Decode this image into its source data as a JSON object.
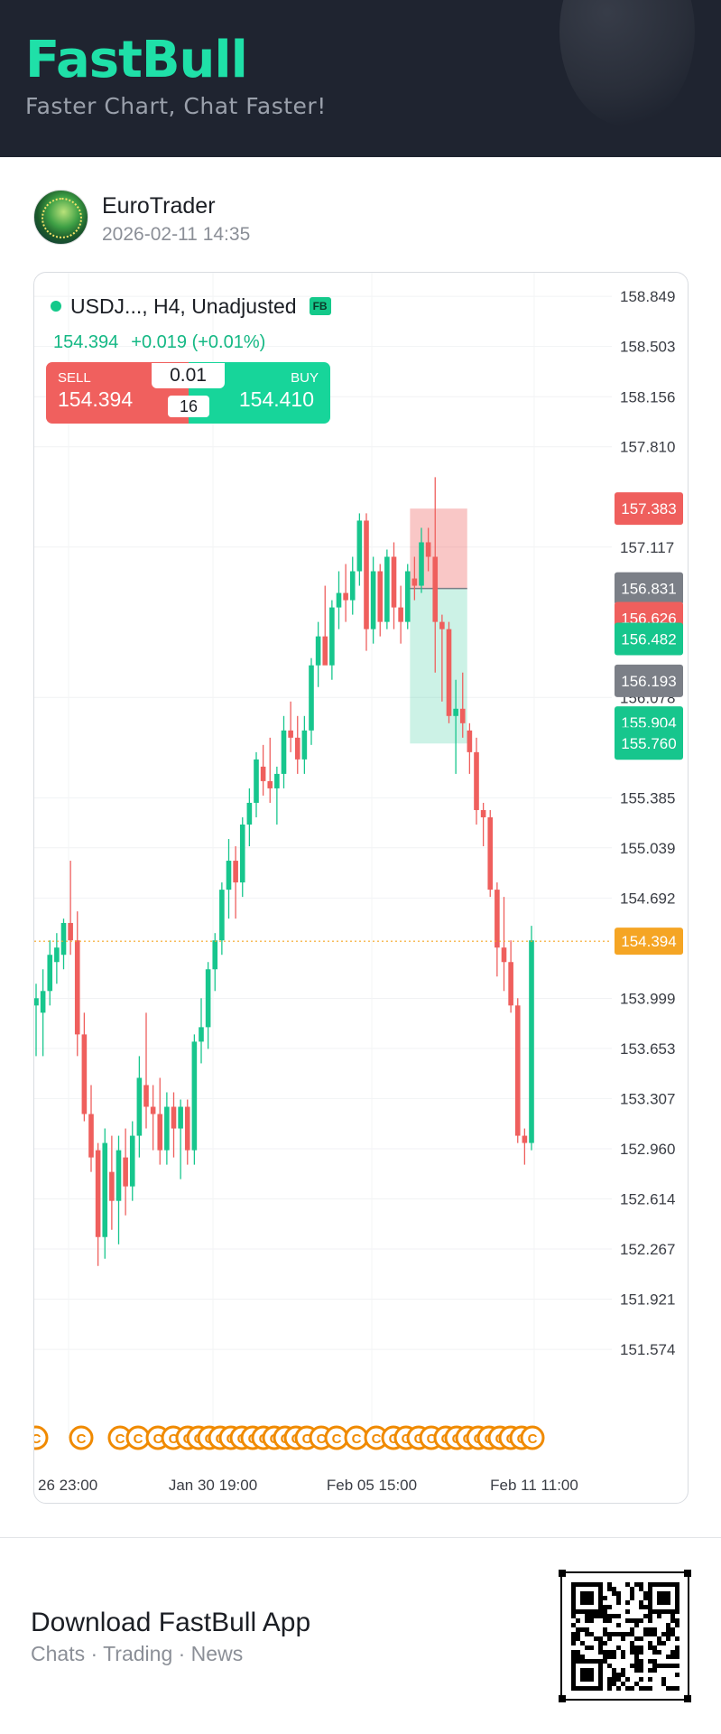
{
  "header": {
    "logo": "FastBull",
    "tagline": "Faster Chart, Chat Faster!"
  },
  "author": {
    "name": "EuroTrader",
    "timestamp": "2026-02-11 14:35"
  },
  "chart": {
    "symbol": "USDJ...",
    "meta": ", H4, Unadjusted",
    "badge": "FB",
    "quote_price": "154.394",
    "quote_change": "+0.019 (+0.01%)",
    "sell_label": "SELL",
    "sell_price": "154.394",
    "buy_label": "BUY",
    "buy_price": "154.410",
    "lot_size": "0.01",
    "spread": "16",
    "colors": {
      "up": "#17c68d",
      "down": "#ef5f5d",
      "current": "#f5a524",
      "gray_tag": "#7b7f87"
    }
  },
  "chart_data": {
    "type": "candlestick",
    "y_ticks": [
      "158.849",
      "158.503",
      "158.156",
      "157.810",
      "157.117",
      "156.078",
      "155.385",
      "155.039",
      "154.692",
      "153.999",
      "153.653",
      "153.307",
      "152.960",
      "152.614",
      "152.267",
      "151.921",
      "151.574"
    ],
    "x_ticks": [
      "26 23:00",
      "Jan 30 19:00",
      "Feb 05 15:00",
      "Feb 11 11:00"
    ],
    "ylim": [
      151.4,
      158.95
    ],
    "current_price": "154.394",
    "price_tags": [
      {
        "label": "157.383",
        "color": "down"
      },
      {
        "label": "156.831",
        "color": "gray"
      },
      {
        "label": "156.626",
        "color": "down"
      },
      {
        "label": "156.482",
        "color": "up"
      },
      {
        "label": "156.193",
        "color": "gray"
      },
      {
        "label": "155.904",
        "color": "up"
      },
      {
        "label": "155.760",
        "color": "up"
      }
    ],
    "position_box": {
      "entry": 156.831,
      "stop": 157.383,
      "target": 155.76
    },
    "event_marker": "C",
    "candles": [
      {
        "o": 153.95,
        "h": 154.1,
        "l": 153.6,
        "c": 154.0
      },
      {
        "o": 153.9,
        "h": 154.2,
        "l": 153.6,
        "c": 154.05
      },
      {
        "o": 154.05,
        "h": 154.4,
        "l": 153.95,
        "c": 154.3
      },
      {
        "o": 154.25,
        "h": 154.45,
        "l": 154.1,
        "c": 154.35
      },
      {
        "o": 154.3,
        "h": 154.55,
        "l": 154.2,
        "c": 154.52
      },
      {
        "o": 154.52,
        "h": 154.95,
        "l": 154.3,
        "c": 154.4
      },
      {
        "o": 154.4,
        "h": 154.6,
        "l": 153.6,
        "c": 153.75
      },
      {
        "o": 153.75,
        "h": 153.9,
        "l": 153.15,
        "c": 153.2
      },
      {
        "o": 153.2,
        "h": 153.4,
        "l": 152.8,
        "c": 152.9
      },
      {
        "o": 152.95,
        "h": 153.0,
        "l": 152.15,
        "c": 152.35
      },
      {
        "o": 152.35,
        "h": 153.1,
        "l": 152.2,
        "c": 153.0
      },
      {
        "o": 152.8,
        "h": 153.05,
        "l": 152.4,
        "c": 152.6
      },
      {
        "o": 152.6,
        "h": 153.05,
        "l": 152.3,
        "c": 152.95
      },
      {
        "o": 152.9,
        "h": 153.1,
        "l": 152.5,
        "c": 152.7
      },
      {
        "o": 152.7,
        "h": 153.15,
        "l": 152.6,
        "c": 153.05
      },
      {
        "o": 153.05,
        "h": 153.6,
        "l": 152.9,
        "c": 153.45
      },
      {
        "o": 153.4,
        "h": 153.9,
        "l": 153.1,
        "c": 153.25
      },
      {
        "o": 153.25,
        "h": 153.4,
        "l": 152.95,
        "c": 153.2
      },
      {
        "o": 153.2,
        "h": 153.45,
        "l": 152.85,
        "c": 152.95
      },
      {
        "o": 152.95,
        "h": 153.35,
        "l": 152.85,
        "c": 153.25
      },
      {
        "o": 153.25,
        "h": 153.35,
        "l": 152.9,
        "c": 153.1
      },
      {
        "o": 153.1,
        "h": 153.3,
        "l": 152.75,
        "c": 153.25
      },
      {
        "o": 153.25,
        "h": 153.3,
        "l": 152.85,
        "c": 152.95
      },
      {
        "o": 152.95,
        "h": 153.75,
        "l": 152.85,
        "c": 153.7
      },
      {
        "o": 153.7,
        "h": 154.0,
        "l": 153.55,
        "c": 153.8
      },
      {
        "o": 153.8,
        "h": 154.25,
        "l": 153.65,
        "c": 154.2
      },
      {
        "o": 154.2,
        "h": 154.45,
        "l": 154.05,
        "c": 154.4
      },
      {
        "o": 154.4,
        "h": 154.8,
        "l": 154.3,
        "c": 154.75
      },
      {
        "o": 154.75,
        "h": 155.1,
        "l": 154.55,
        "c": 154.95
      },
      {
        "o": 154.95,
        "h": 155.05,
        "l": 154.55,
        "c": 154.8
      },
      {
        "o": 154.8,
        "h": 155.25,
        "l": 154.7,
        "c": 155.2
      },
      {
        "o": 155.2,
        "h": 155.45,
        "l": 155.05,
        "c": 155.35
      },
      {
        "o": 155.35,
        "h": 155.7,
        "l": 155.25,
        "c": 155.65
      },
      {
        "o": 155.6,
        "h": 155.75,
        "l": 155.4,
        "c": 155.5
      },
      {
        "o": 155.5,
        "h": 155.8,
        "l": 155.35,
        "c": 155.45
      },
      {
        "o": 155.45,
        "h": 155.6,
        "l": 155.2,
        "c": 155.55
      },
      {
        "o": 155.55,
        "h": 155.95,
        "l": 155.45,
        "c": 155.85
      },
      {
        "o": 155.85,
        "h": 156.05,
        "l": 155.7,
        "c": 155.8
      },
      {
        "o": 155.8,
        "h": 155.95,
        "l": 155.55,
        "c": 155.65
      },
      {
        "o": 155.65,
        "h": 155.95,
        "l": 155.55,
        "c": 155.85
      },
      {
        "o": 155.85,
        "h": 156.35,
        "l": 155.75,
        "c": 156.3
      },
      {
        "o": 156.3,
        "h": 156.6,
        "l": 156.15,
        "c": 156.5
      },
      {
        "o": 156.5,
        "h": 156.85,
        "l": 156.35,
        "c": 156.3
      },
      {
        "o": 156.3,
        "h": 156.75,
        "l": 156.2,
        "c": 156.7
      },
      {
        "o": 156.7,
        "h": 156.95,
        "l": 156.55,
        "c": 156.8
      },
      {
        "o": 156.8,
        "h": 157.0,
        "l": 156.6,
        "c": 156.75
      },
      {
        "o": 156.75,
        "h": 157.05,
        "l": 156.65,
        "c": 156.95
      },
      {
        "o": 156.95,
        "h": 157.35,
        "l": 156.85,
        "c": 157.3
      },
      {
        "o": 157.3,
        "h": 157.35,
        "l": 156.4,
        "c": 156.55
      },
      {
        "o": 156.55,
        "h": 157.05,
        "l": 156.45,
        "c": 156.95
      },
      {
        "o": 156.95,
        "h": 157.0,
        "l": 156.5,
        "c": 156.6
      },
      {
        "o": 156.6,
        "h": 157.1,
        "l": 156.55,
        "c": 157.05
      },
      {
        "o": 157.05,
        "h": 157.15,
        "l": 156.55,
        "c": 156.7
      },
      {
        "o": 156.7,
        "h": 156.85,
        "l": 156.45,
        "c": 156.6
      },
      {
        "o": 156.6,
        "h": 157.0,
        "l": 156.55,
        "c": 156.95
      },
      {
        "o": 156.9,
        "h": 157.05,
        "l": 156.75,
        "c": 156.85
      },
      {
        "o": 156.85,
        "h": 157.25,
        "l": 156.8,
        "c": 157.15
      },
      {
        "o": 157.15,
        "h": 157.25,
        "l": 156.95,
        "c": 157.05
      },
      {
        "o": 157.05,
        "h": 157.6,
        "l": 156.25,
        "c": 156.6
      },
      {
        "o": 156.6,
        "h": 156.65,
        "l": 156.05,
        "c": 156.55
      },
      {
        "o": 156.55,
        "h": 156.6,
        "l": 155.9,
        "c": 155.95
      },
      {
        "o": 155.95,
        "h": 156.2,
        "l": 155.55,
        "c": 156.0
      },
      {
        "o": 156.0,
        "h": 156.25,
        "l": 155.8,
        "c": 155.9
      },
      {
        "o": 155.85,
        "h": 155.9,
        "l": 155.55,
        "c": 155.7
      },
      {
        "o": 155.7,
        "h": 155.8,
        "l": 155.2,
        "c": 155.3
      },
      {
        "o": 155.3,
        "h": 155.35,
        "l": 155.05,
        "c": 155.25
      },
      {
        "o": 155.25,
        "h": 155.3,
        "l": 154.7,
        "c": 154.75
      },
      {
        "o": 154.75,
        "h": 154.8,
        "l": 154.15,
        "c": 154.35
      },
      {
        "o": 154.35,
        "h": 154.7,
        "l": 154.05,
        "c": 154.25
      },
      {
        "o": 154.25,
        "h": 154.4,
        "l": 153.9,
        "c": 153.95
      },
      {
        "o": 153.95,
        "h": 154.0,
        "l": 153.0,
        "c": 153.05
      },
      {
        "o": 153.05,
        "h": 153.1,
        "l": 152.85,
        "c": 153.0
      },
      {
        "o": 153.0,
        "h": 154.5,
        "l": 152.95,
        "c": 154.4
      }
    ]
  },
  "footer": {
    "download_title": "Download FastBull App",
    "download_subtitle": "Chats · Trading · News"
  }
}
